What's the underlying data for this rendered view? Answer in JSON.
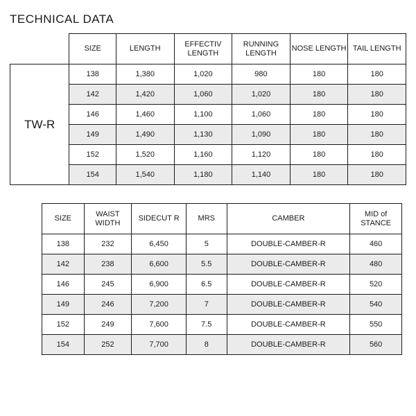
{
  "title": "TECHNICAL DATA",
  "model": "TW-R",
  "colors": {
    "text": "#1a1a1a",
    "border": "#1a1a1a",
    "zebra_even": "#ebebeb",
    "zebra_odd": "#ffffff",
    "background": "#ffffff"
  },
  "table1": {
    "columns": [
      "SIZE",
      "LENGTH",
      "EFFECTIV LENGTH",
      "RUNNING LENGTH",
      "NOSE LENGTH",
      "TAIL LENGTH"
    ],
    "rows": [
      {
        "size": "138",
        "length": "1,380",
        "eff": "1,020",
        "run": "980",
        "nose": "180",
        "tail": "180"
      },
      {
        "size": "142",
        "length": "1,420",
        "eff": "1,060",
        "run": "1,020",
        "nose": "180",
        "tail": "180"
      },
      {
        "size": "146",
        "length": "1,460",
        "eff": "1,100",
        "run": "1,060",
        "nose": "180",
        "tail": "180"
      },
      {
        "size": "149",
        "length": "1,490",
        "eff": "1,130",
        "run": "1,090",
        "nose": "180",
        "tail": "180"
      },
      {
        "size": "152",
        "length": "1,520",
        "eff": "1,160",
        "run": "1,120",
        "nose": "180",
        "tail": "180"
      },
      {
        "size": "154",
        "length": "1,540",
        "eff": "1,180",
        "run": "1,140",
        "nose": "180",
        "tail": "180"
      }
    ]
  },
  "table2": {
    "columns": [
      "SIZE",
      "WAIST WIDTH",
      "SIDECUT R",
      "MRS",
      "CAMBER",
      "MID of STANCE"
    ],
    "rows": [
      {
        "size": "138",
        "waist": "232",
        "sidecut": "6,450",
        "mrs": "5",
        "camber": "DOUBLE-CAMBER-R",
        "mid": "460"
      },
      {
        "size": "142",
        "waist": "238",
        "sidecut": "6,600",
        "mrs": "5.5",
        "camber": "DOUBLE-CAMBER-R",
        "mid": "480"
      },
      {
        "size": "146",
        "waist": "245",
        "sidecut": "6,900",
        "mrs": "6.5",
        "camber": "DOUBLE-CAMBER-R",
        "mid": "520"
      },
      {
        "size": "149",
        "waist": "246",
        "sidecut": "7,200",
        "mrs": "7",
        "camber": "DOUBLE-CAMBER-R",
        "mid": "540"
      },
      {
        "size": "152",
        "waist": "249",
        "sidecut": "7,600",
        "mrs": "7.5",
        "camber": "DOUBLE-CAMBER-R",
        "mid": "550"
      },
      {
        "size": "154",
        "waist": "252",
        "sidecut": "7,700",
        "mrs": "8",
        "camber": "DOUBLE-CAMBER-R",
        "mid": "560"
      }
    ]
  }
}
